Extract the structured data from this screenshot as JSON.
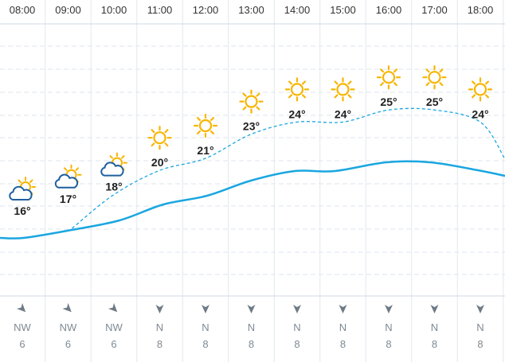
{
  "forecast": {
    "hours": [
      {
        "time": "08:00",
        "icon": "partly-cloudy-icon",
        "temp": "16°",
        "wind_dir": "NW",
        "wind_speed": "6"
      },
      {
        "time": "09:00",
        "icon": "partly-cloudy-icon",
        "temp": "17°",
        "wind_dir": "NW",
        "wind_speed": "6"
      },
      {
        "time": "10:00",
        "icon": "partly-cloudy-icon",
        "temp": "18°",
        "wind_dir": "NW",
        "wind_speed": "6"
      },
      {
        "time": "11:00",
        "icon": "sun-icon",
        "temp": "20°",
        "wind_dir": "N",
        "wind_speed": "8"
      },
      {
        "time": "12:00",
        "icon": "sun-icon",
        "temp": "21°",
        "wind_dir": "N",
        "wind_speed": "8"
      },
      {
        "time": "13:00",
        "icon": "sun-icon",
        "temp": "23°",
        "wind_dir": "N",
        "wind_speed": "8"
      },
      {
        "time": "14:00",
        "icon": "sun-icon",
        "temp": "24°",
        "wind_dir": "N",
        "wind_speed": "8"
      },
      {
        "time": "15:00",
        "icon": "sun-icon",
        "temp": "24°",
        "wind_dir": "N",
        "wind_speed": "8"
      },
      {
        "time": "16:00",
        "icon": "sun-icon",
        "temp": "25°",
        "wind_dir": "N",
        "wind_speed": "8"
      },
      {
        "time": "17:00",
        "icon": "sun-icon",
        "temp": "25°",
        "wind_dir": "N",
        "wind_speed": "8"
      },
      {
        "time": "18:00",
        "icon": "sun-icon",
        "temp": "24°",
        "wind_dir": "N",
        "wind_speed": "8"
      }
    ]
  },
  "chart_data": {
    "type": "line",
    "categories": [
      "08:00",
      "09:00",
      "10:00",
      "11:00",
      "12:00",
      "13:00",
      "14:00",
      "15:00",
      "16:00",
      "17:00",
      "18:00"
    ],
    "series": [
      {
        "values": [
          16,
          17,
          18,
          20,
          21,
          23,
          24,
          24,
          25,
          25,
          24
        ]
      }
    ],
    "grid": true
  },
  "colors": {
    "temp_line": "#1aa6e0",
    "grid": "#dce4ec",
    "sun": "#f7b500",
    "cloud_stroke": "#1f5f9e",
    "wind_arrow": "#6e7a85",
    "wind_text": "#7f8a93"
  }
}
